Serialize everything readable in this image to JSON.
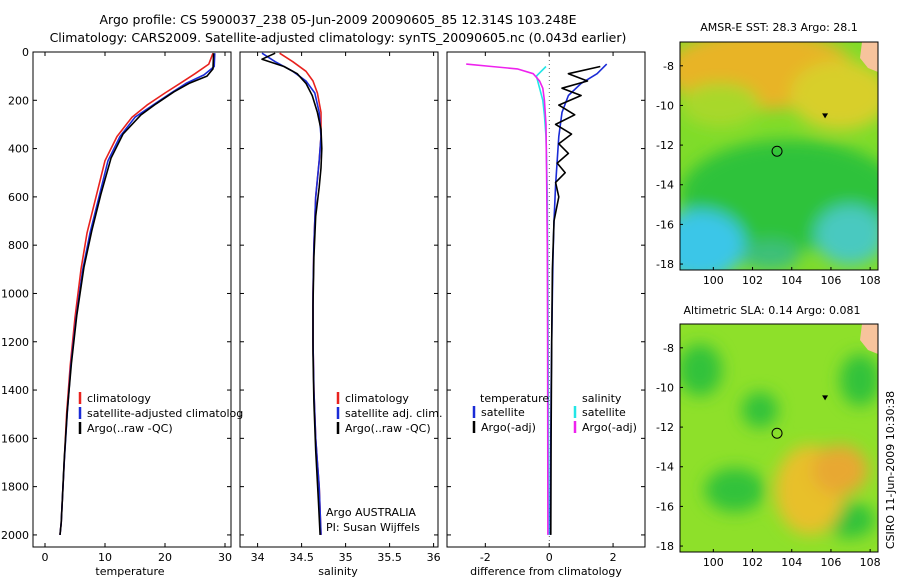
{
  "header": {
    "title_line1": "Argo profile: CS 5900037_238 05-Jun-2009 20090605_85 12.314S 103.248E",
    "title_line2": "Climatology: CARS2009. Satellite-adjusted climatology: synTS_20090605.nc (0.043d earlier)"
  },
  "side_label": "CSIRO 11-Jun-2009 10:30:38",
  "colors": {
    "red": "#e8221e",
    "blue": "#1a2bd6",
    "black": "#000000",
    "magenta": "#ee22ee",
    "cyan": "#22e6e6",
    "land": "#f7c39c"
  },
  "chart_data": [
    {
      "type": "line",
      "id": "temperature",
      "xlabel": "temperature",
      "xlim": [
        -2,
        31
      ],
      "ylim": [
        2050,
        0
      ],
      "xticks": [
        0,
        10,
        20,
        30
      ],
      "yticks": [
        0,
        200,
        400,
        600,
        800,
        1000,
        1200,
        1400,
        1600,
        1800,
        2000
      ],
      "legend": {
        "position": "bottom-right",
        "entries": [
          "climatology",
          "satellite-adjusted climatolog",
          "Argo(..raw -QC)"
        ]
      },
      "series": [
        {
          "name": "climatology",
          "color": "red",
          "x": [
            28.0,
            27.3,
            25.0,
            22.5,
            20.0,
            17.0,
            14.5,
            12.0,
            10.0,
            8.5,
            7.0,
            6.0,
            5.0,
            4.2,
            3.6,
            3.2,
            2.9,
            2.7,
            2.5
          ],
          "y": [
            5,
            50,
            90,
            130,
            170,
            220,
            270,
            350,
            450,
            600,
            750,
            900,
            1100,
            1300,
            1500,
            1700,
            1850,
            1950,
            2000
          ]
        },
        {
          "name": "satellite-adjusted climatology",
          "color": "blue",
          "x": [
            28.3,
            28.2,
            26.5,
            23.5,
            21.0,
            18.0,
            15.0,
            12.5,
            10.5,
            9.0,
            7.5,
            6.3,
            5.2,
            4.3,
            3.7,
            3.2,
            2.9,
            2.7,
            2.5
          ],
          "y": [
            5,
            60,
            95,
            130,
            170,
            220,
            270,
            350,
            450,
            600,
            750,
            900,
            1100,
            1300,
            1500,
            1700,
            1850,
            1950,
            2000
          ]
        },
        {
          "name": "Argo(..raw -QC)",
          "color": "black",
          "x": [
            28.1,
            28.0,
            27.0,
            24.0,
            21.5,
            18.5,
            16.0,
            13.0,
            11.0,
            9.3,
            7.8,
            6.5,
            5.3,
            4.4,
            3.7,
            3.2,
            2.9,
            2.7,
            2.5
          ],
          "y": [
            5,
            70,
            100,
            130,
            165,
            215,
            260,
            340,
            440,
            590,
            740,
            890,
            1090,
            1290,
            1490,
            1690,
            1850,
            1950,
            2000
          ]
        }
      ]
    },
    {
      "type": "line",
      "id": "salinity",
      "xlabel": "salinity",
      "xlim": [
        33.8,
        36.05
      ],
      "ylim": [
        2050,
        0
      ],
      "xticks": [
        34,
        34.5,
        35,
        35.5,
        36
      ],
      "xticklabels": [
        "34",
        "34.5",
        "35",
        "35.5",
        "36"
      ],
      "legend": {
        "position": "bottom-right",
        "entries": [
          "climatology",
          "satellite adj. clim.",
          "Argo(..raw -QC)"
        ]
      },
      "annotations": [
        "Argo AUSTRALIA",
        "PI: Susan Wijffels"
      ],
      "series": [
        {
          "name": "climatology",
          "color": "red",
          "x": [
            34.25,
            34.4,
            34.55,
            34.63,
            34.68,
            34.72,
            34.72,
            34.7,
            34.66,
            34.64,
            34.63,
            34.63,
            34.64,
            34.66,
            34.68,
            34.7,
            34.71,
            34.72
          ],
          "y": [
            5,
            40,
            80,
            120,
            170,
            250,
            350,
            450,
            600,
            800,
            1000,
            1200,
            1400,
            1600,
            1700,
            1800,
            1900,
            2000
          ]
        },
        {
          "name": "satellite adj. clim.",
          "color": "blue",
          "x": [
            34.05,
            34.2,
            34.4,
            34.55,
            34.65,
            34.7,
            34.72,
            34.7,
            34.66,
            34.64,
            34.63,
            34.63,
            34.64,
            34.66,
            34.68,
            34.7,
            34.71,
            34.72
          ],
          "y": [
            5,
            40,
            80,
            120,
            170,
            250,
            350,
            450,
            600,
            800,
            1000,
            1200,
            1400,
            1600,
            1700,
            1800,
            1900,
            2000
          ]
        },
        {
          "name": "Argo(..raw -QC)",
          "color": "black",
          "x": [
            34.2,
            34.05,
            34.3,
            34.45,
            34.55,
            34.62,
            34.68,
            34.72,
            34.73,
            34.72,
            34.7,
            34.66,
            34.64,
            34.63,
            34.63,
            34.64,
            34.66,
            34.69,
            34.71
          ],
          "y": [
            5,
            30,
            60,
            90,
            130,
            180,
            250,
            320,
            400,
            480,
            560,
            680,
            850,
            1050,
            1250,
            1450,
            1650,
            1850,
            2000
          ]
        }
      ]
    },
    {
      "type": "line",
      "id": "difference",
      "xlabel": "difference from climatology",
      "xlim": [
        -3.2,
        3.0
      ],
      "ylim": [
        2050,
        0
      ],
      "xticks": [
        -2,
        0,
        2
      ],
      "legend": {
        "position": "bottom",
        "entries": [
          "temperature",
          "satellite",
          "Argo(-adj)",
          "salinity",
          "satellite",
          "Argo(-adj)"
        ]
      },
      "series": [
        {
          "name": "temperature satellite",
          "color": "blue",
          "x": [
            1.8,
            1.5,
            1.0,
            0.6,
            0.4,
            0.3,
            0.25,
            0.2,
            0.15,
            0.12,
            0.1,
            0.08,
            0.06,
            0.05,
            0.04,
            0.03,
            0.03
          ],
          "y": [
            50,
            90,
            130,
            180,
            250,
            350,
            450,
            550,
            700,
            850,
            1000,
            1200,
            1400,
            1600,
            1800,
            1950,
            2000
          ]
        },
        {
          "name": "temperature Argo(-adj)",
          "color": "black",
          "x": [
            1.6,
            0.6,
            1.2,
            0.4,
            1.0,
            0.3,
            0.8,
            0.2,
            0.7,
            0.3,
            0.6,
            0.25,
            0.5,
            0.2,
            0.3,
            0.15,
            0.1,
            0.08,
            0.06,
            0.05
          ],
          "y": [
            60,
            90,
            120,
            150,
            180,
            220,
            260,
            300,
            340,
            380,
            420,
            460,
            500,
            540,
            600,
            700,
            900,
            1200,
            1600,
            2000
          ]
        },
        {
          "name": "salinity satellite",
          "color": "cyan",
          "x": [
            -0.1,
            -0.4,
            -0.3,
            -0.2,
            -0.15,
            -0.1,
            -0.08,
            -0.06,
            -0.05,
            -0.04,
            -0.03,
            -0.02,
            -0.02
          ],
          "y": [
            60,
            100,
            150,
            200,
            260,
            350,
            450,
            600,
            800,
            1000,
            1300,
            1700,
            2000
          ]
        },
        {
          "name": "salinity Argo(-adj)",
          "color": "magenta",
          "x": [
            -2.6,
            -1.8,
            -1.0,
            -0.5,
            -0.3,
            -0.2,
            -0.15,
            -0.1,
            -0.08,
            -0.06,
            -0.05,
            -0.04
          ],
          "y": [
            50,
            60,
            70,
            90,
            120,
            150,
            200,
            300,
            500,
            800,
            1200,
            2000
          ]
        }
      ]
    },
    {
      "type": "heatmap",
      "id": "sst-map",
      "title": "AMSR-E SST: 28.3 Argo: 28.1",
      "xlim": [
        98.3,
        108.4
      ],
      "ylim": [
        -18.3,
        -6.8
      ],
      "xticks": [
        100,
        102,
        104,
        106,
        108
      ],
      "yticks": [
        -8,
        -10,
        -12,
        -14,
        -16,
        -18
      ],
      "markers": [
        {
          "kind": "circle",
          "lon": 103.25,
          "lat": -12.31
        },
        {
          "kind": "triangle",
          "lon": 105.7,
          "lat": -10.5
        }
      ]
    },
    {
      "type": "heatmap",
      "id": "sla-map",
      "title": "Altimetric SLA: 0.14 Argo: 0.081",
      "xlim": [
        98.3,
        108.4
      ],
      "ylim": [
        -18.3,
        -6.8
      ],
      "xticks": [
        100,
        102,
        104,
        106,
        108
      ],
      "yticks": [
        -8,
        -10,
        -12,
        -14,
        -16,
        -18
      ],
      "markers": [
        {
          "kind": "circle",
          "lon": 103.25,
          "lat": -12.31
        },
        {
          "kind": "triangle",
          "lon": 105.7,
          "lat": -10.5
        }
      ]
    }
  ]
}
